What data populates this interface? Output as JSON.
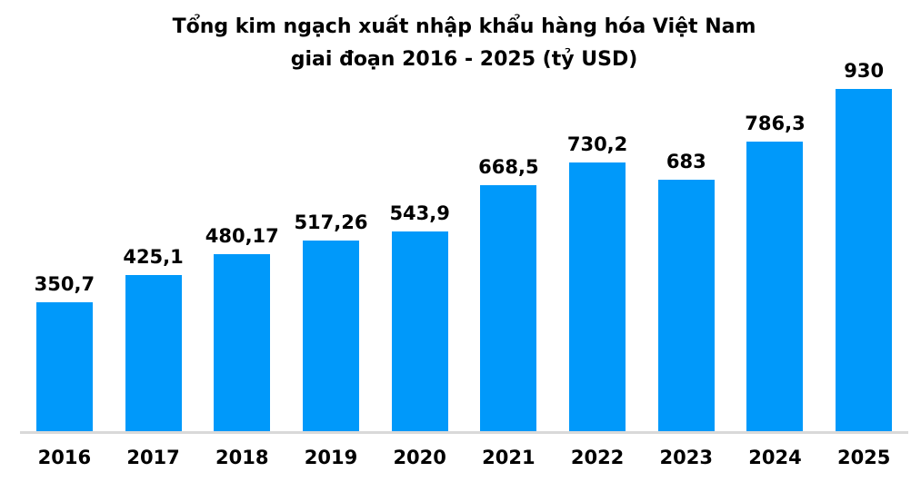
{
  "chart": {
    "title_line1": "Tổng kim ngạch xuất nhập khẩu hàng hóa Việt Nam",
    "title_line2": "giai đoạn 2016 - 2025 (tỷ USD)"
  },
  "chart_data": {
    "type": "bar",
    "title": "Tổng kim ngạch xuất nhập khẩu hàng hóa Việt Nam giai đoạn 2016 - 2025 (tỷ USD)",
    "categories": [
      "2016",
      "2017",
      "2018",
      "2019",
      "2020",
      "2021",
      "2022",
      "2023",
      "2024",
      "2025"
    ],
    "values": [
      350.7,
      425.1,
      480.17,
      517.26,
      543.9,
      668.5,
      730.2,
      683,
      786.3,
      930
    ],
    "value_labels": [
      "350,7",
      "425,1",
      "480,17",
      "517,26",
      "543,9",
      "668,5",
      "730,2",
      "683",
      "786,3",
      "930"
    ],
    "xlabel": "",
    "ylabel": "",
    "ylim": [
      0,
      930
    ],
    "grid": false,
    "legend": false,
    "bar_color": "#0099fa",
    "axis_line_color": "#d9d9d9",
    "label_color": "#000000",
    "decimal_separator": ","
  }
}
